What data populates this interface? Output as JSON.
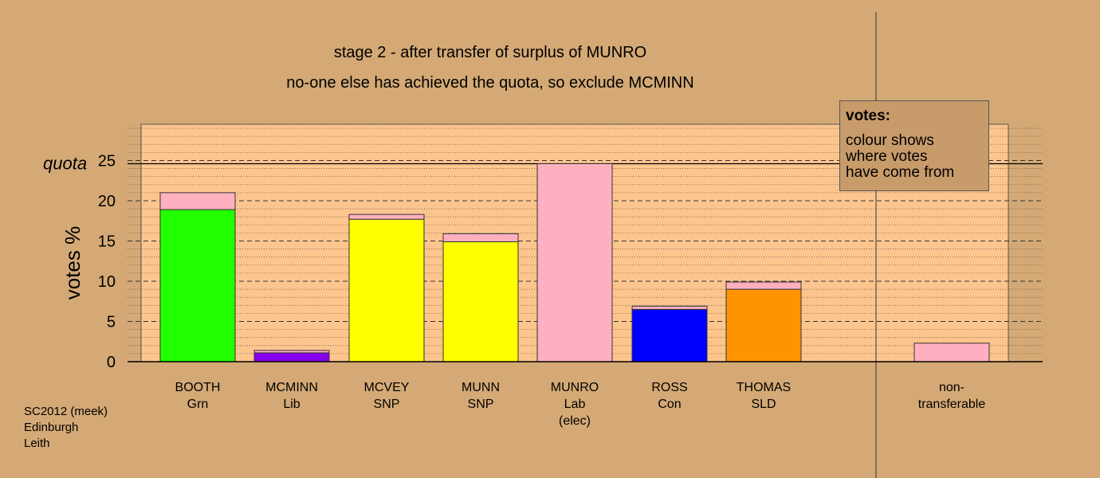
{
  "title_lines": [
    "stage 2 - after transfer of surplus of MUNRO",
    "no-one else has achieved the quota, so exclude MCMINN"
  ],
  "footer_lines": [
    "SC2012 (meek)",
    "Edinburgh",
    "Leith"
  ],
  "legend": {
    "title": "votes:",
    "lines": [
      "colour shows",
      "where votes",
      "have come from"
    ]
  },
  "chart_data": {
    "type": "bar",
    "stacked": true,
    "ylabel": "votes %",
    "ylim": [
      0,
      29.5
    ],
    "yticks": [
      0,
      5,
      10,
      15,
      20,
      25
    ],
    "quota": 24.6,
    "quota_label": "quota",
    "grid": true,
    "categories": [
      {
        "label_lines": [
          "BOOTH",
          "Grn"
        ],
        "segments": [
          {
            "value": 18.9,
            "color": "#22ff00"
          },
          {
            "value": 2.1,
            "color": "#ffb0c0"
          }
        ]
      },
      {
        "label_lines": [
          "MCMINN",
          "Lib"
        ],
        "segments": [
          {
            "value": 1.1,
            "color": "#8800ee"
          },
          {
            "value": 0.3,
            "color": "#ffb0c0"
          }
        ]
      },
      {
        "label_lines": [
          "MCVEY",
          "SNP"
        ],
        "segments": [
          {
            "value": 17.7,
            "color": "#ffff00"
          },
          {
            "value": 0.6,
            "color": "#ffb0c0"
          }
        ]
      },
      {
        "label_lines": [
          "MUNN",
          "SNP"
        ],
        "segments": [
          {
            "value": 14.9,
            "color": "#ffff00"
          },
          {
            "value": 1.0,
            "color": "#ffb0c0"
          }
        ]
      },
      {
        "label_lines": [
          "MUNRO",
          "Lab",
          "(elec)"
        ],
        "segments": [
          {
            "value": 24.6,
            "color": "#ffb0c0"
          }
        ]
      },
      {
        "label_lines": [
          "ROSS",
          "Con"
        ],
        "segments": [
          {
            "value": 6.5,
            "color": "#0000ff"
          },
          {
            "value": 0.4,
            "color": "#ffb0c0"
          }
        ]
      },
      {
        "label_lines": [
          "THOMAS",
          "SLD"
        ],
        "segments": [
          {
            "value": 9.0,
            "color": "#ff9400"
          },
          {
            "value": 0.9,
            "color": "#ffb0c0"
          }
        ]
      },
      {
        "label_lines": [
          "non-",
          "transferable"
        ],
        "segments": [
          {
            "value": 2.3,
            "color": "#ffb0c0"
          }
        ]
      }
    ],
    "colors": {
      "background": "#d4a975",
      "plot_area": "#fdc58e",
      "legend_bg": "#c89b6a"
    }
  }
}
